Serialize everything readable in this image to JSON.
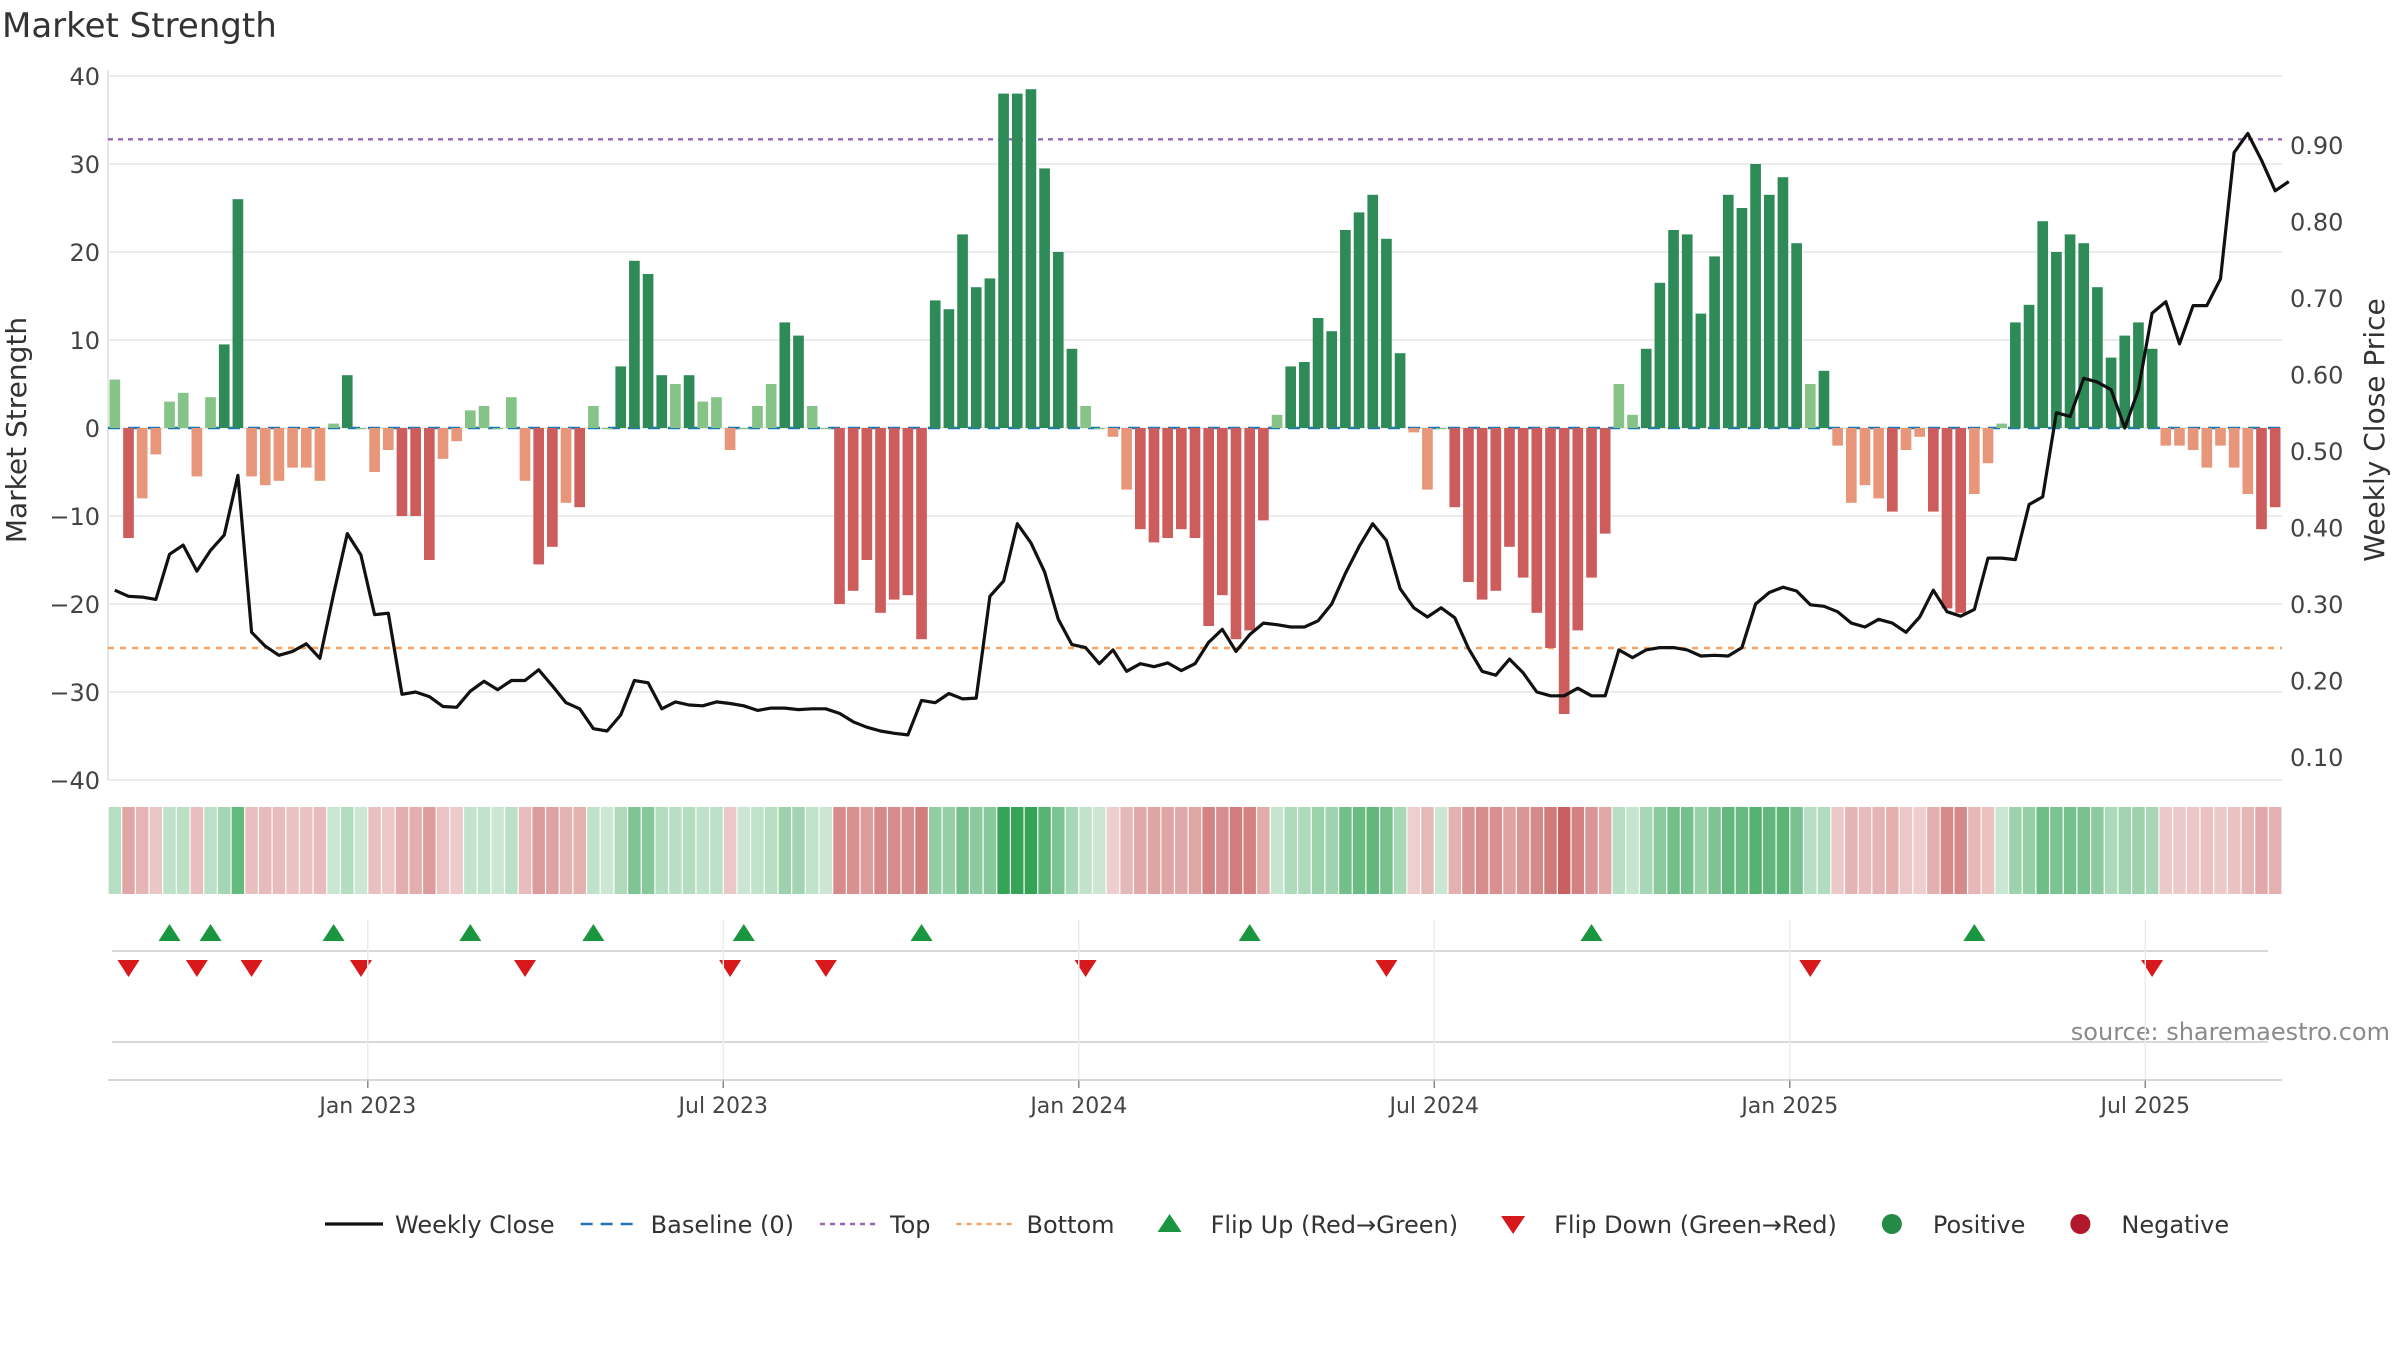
{
  "chart_data": {
    "type": "bar+line",
    "title": "Market Strength",
    "source": "source: sharemaestro.com",
    "y_left": {
      "label": "Market Strength",
      "ylim": [
        -40,
        40
      ],
      "ticks": [
        "40",
        "30",
        "20",
        "10",
        "0",
        "−10",
        "−20",
        "−30",
        "−40"
      ]
    },
    "y_right": {
      "label": "Weekly Close Price",
      "ylim": [
        0.07,
        0.99
      ],
      "ticks": [
        "0.90",
        "0.80",
        "0.70",
        "0.60",
        "0.50",
        "0.40",
        "0.30",
        "0.20",
        "0.10"
      ]
    },
    "x_ticks": [
      "Jan 2023",
      "Jul 2023",
      "Jan 2024",
      "Jul 2024",
      "Jan 2025",
      "Jul 2025"
    ],
    "top_line": 32.8,
    "bottom_line": -25,
    "strength_values": [
      5.5,
      -12.5,
      -8,
      -3,
      3,
      4,
      -5.5,
      3.5,
      9.5,
      26,
      -5.5,
      -6.5,
      -6,
      -4.5,
      -4.5,
      -6,
      0.5,
      6,
      0,
      -5,
      -2.5,
      -10,
      -10,
      -15,
      -3.5,
      -1.5,
      2,
      2.5,
      0,
      3.5,
      -6,
      -15.5,
      -13.5,
      -8.5,
      -9,
      2.5,
      0,
      7,
      19,
      17.5,
      6,
      5,
      6,
      3,
      3.5,
      -2.5,
      0,
      2.5,
      5,
      12,
      10.5,
      2.5,
      0,
      -20,
      -18.5,
      -15,
      -21,
      -19.5,
      -19,
      -24,
      14.5,
      13.5,
      22,
      16,
      17,
      38,
      38,
      38.5,
      29.5,
      20,
      9,
      2.5,
      0,
      -1,
      -7,
      -11.5,
      -13,
      -12.5,
      -11.5,
      -12.5,
      -22.5,
      -19,
      -24,
      -23,
      -10.5,
      1.5,
      7,
      7.5,
      12.5,
      11,
      22.5,
      24.5,
      26.5,
      21.5,
      8.5,
      -0.5,
      -7,
      0,
      -9,
      -17.5,
      -19.5,
      -18.5,
      -13.5,
      -17,
      -21,
      -25,
      -32.5,
      -23,
      -17,
      -12,
      5,
      1.5,
      9,
      16.5,
      22.5,
      22,
      13,
      19.5,
      26.5,
      25,
      30,
      26.5,
      28.5,
      21,
      5,
      6.5,
      -2,
      -8.5,
      -6.5,
      -8,
      -9.5,
      -2.5,
      -1,
      -9.5,
      -20.5,
      -21,
      -7.5,
      -4,
      0.5,
      12,
      14,
      23.5,
      20,
      22,
      21,
      16,
      8,
      10.5,
      12,
      9,
      -2,
      -2,
      -2.5,
      -4.5,
      -2,
      -4.5,
      -7.5,
      -11.5,
      -9
    ],
    "weekly_close": [
      0.318,
      0.31,
      0.309,
      0.306,
      0.365,
      0.377,
      0.343,
      0.37,
      0.39,
      0.468,
      0.263,
      0.245,
      0.233,
      0.238,
      0.248,
      0.229,
      0.313,
      0.392,
      0.364,
      0.286,
      0.288,
      0.182,
      0.185,
      0.179,
      0.166,
      0.165,
      0.186,
      0.199,
      0.188,
      0.2,
      0.2,
      0.214,
      0.193,
      0.171,
      0.163,
      0.137,
      0.134,
      0.155,
      0.2,
      0.197,
      0.163,
      0.172,
      0.168,
      0.167,
      0.172,
      0.17,
      0.167,
      0.161,
      0.164,
      0.164,
      0.162,
      0.163,
      0.163,
      0.157,
      0.146,
      0.139,
      0.134,
      0.131,
      0.129,
      0.174,
      0.171,
      0.183,
      0.176,
      0.177,
      0.31,
      0.33,
      0.405,
      0.38,
      0.342,
      0.28,
      0.247,
      0.243,
      0.222,
      0.24,
      0.212,
      0.222,
      0.218,
      0.223,
      0.213,
      0.222,
      0.25,
      0.267,
      0.238,
      0.26,
      0.275,
      0.273,
      0.27,
      0.27,
      0.278,
      0.3,
      0.34,
      0.375,
      0.405,
      0.383,
      0.32,
      0.295,
      0.283,
      0.295,
      0.282,
      0.242,
      0.212,
      0.207,
      0.228,
      0.21,
      0.185,
      0.18,
      0.18,
      0.19,
      0.18,
      0.18,
      0.24,
      0.23,
      0.24,
      0.243,
      0.243,
      0.24,
      0.232,
      0.233,
      0.232,
      0.243,
      0.3,
      0.315,
      0.322,
      0.317,
      0.299,
      0.297,
      0.29,
      0.275,
      0.27,
      0.28,
      0.275,
      0.263,
      0.283,
      0.318,
      0.29,
      0.284,
      0.293,
      0.36,
      0.36,
      0.358,
      0.43,
      0.44,
      0.55,
      0.545,
      0.595,
      0.59,
      0.58,
      0.53,
      0.58,
      0.68,
      0.695,
      0.64,
      0.69,
      0.69,
      0.725,
      0.89,
      0.915,
      0.88,
      0.84,
      0.852
    ],
    "flip_up_weeks": [
      4,
      7,
      16,
      26,
      35,
      46,
      59,
      83,
      108,
      136
    ],
    "flip_down_weeks": [
      1,
      6,
      10,
      18,
      30,
      45,
      52,
      71,
      93,
      124,
      149
    ],
    "legend": [
      {
        "label": "Weekly Close",
        "kind": "line",
        "color": "#111111"
      },
      {
        "label": "Baseline (0)",
        "kind": "dash",
        "color": "#1f77b4"
      },
      {
        "label": "Top",
        "kind": "dot",
        "color": "#9467bd"
      },
      {
        "label": "Bottom",
        "kind": "dot",
        "color": "#f4a460"
      },
      {
        "label": "Flip Up (Red→Green)",
        "kind": "up",
        "color": "#1a9641"
      },
      {
        "label": "Flip Down (Green→Red)",
        "kind": "down",
        "color": "#d7191c"
      },
      {
        "label": "Positive",
        "kind": "circle",
        "color": "#238b45"
      },
      {
        "label": "Negative",
        "kind": "circle",
        "color": "#b2182b"
      }
    ],
    "colors": {
      "strong_pos": "#2e8b57",
      "weak_pos": "#86c386",
      "strong_neg": "#cd5c5c",
      "weak_neg": "#e8967a",
      "grid": "#e6e6e6",
      "text": "#333333"
    }
  }
}
